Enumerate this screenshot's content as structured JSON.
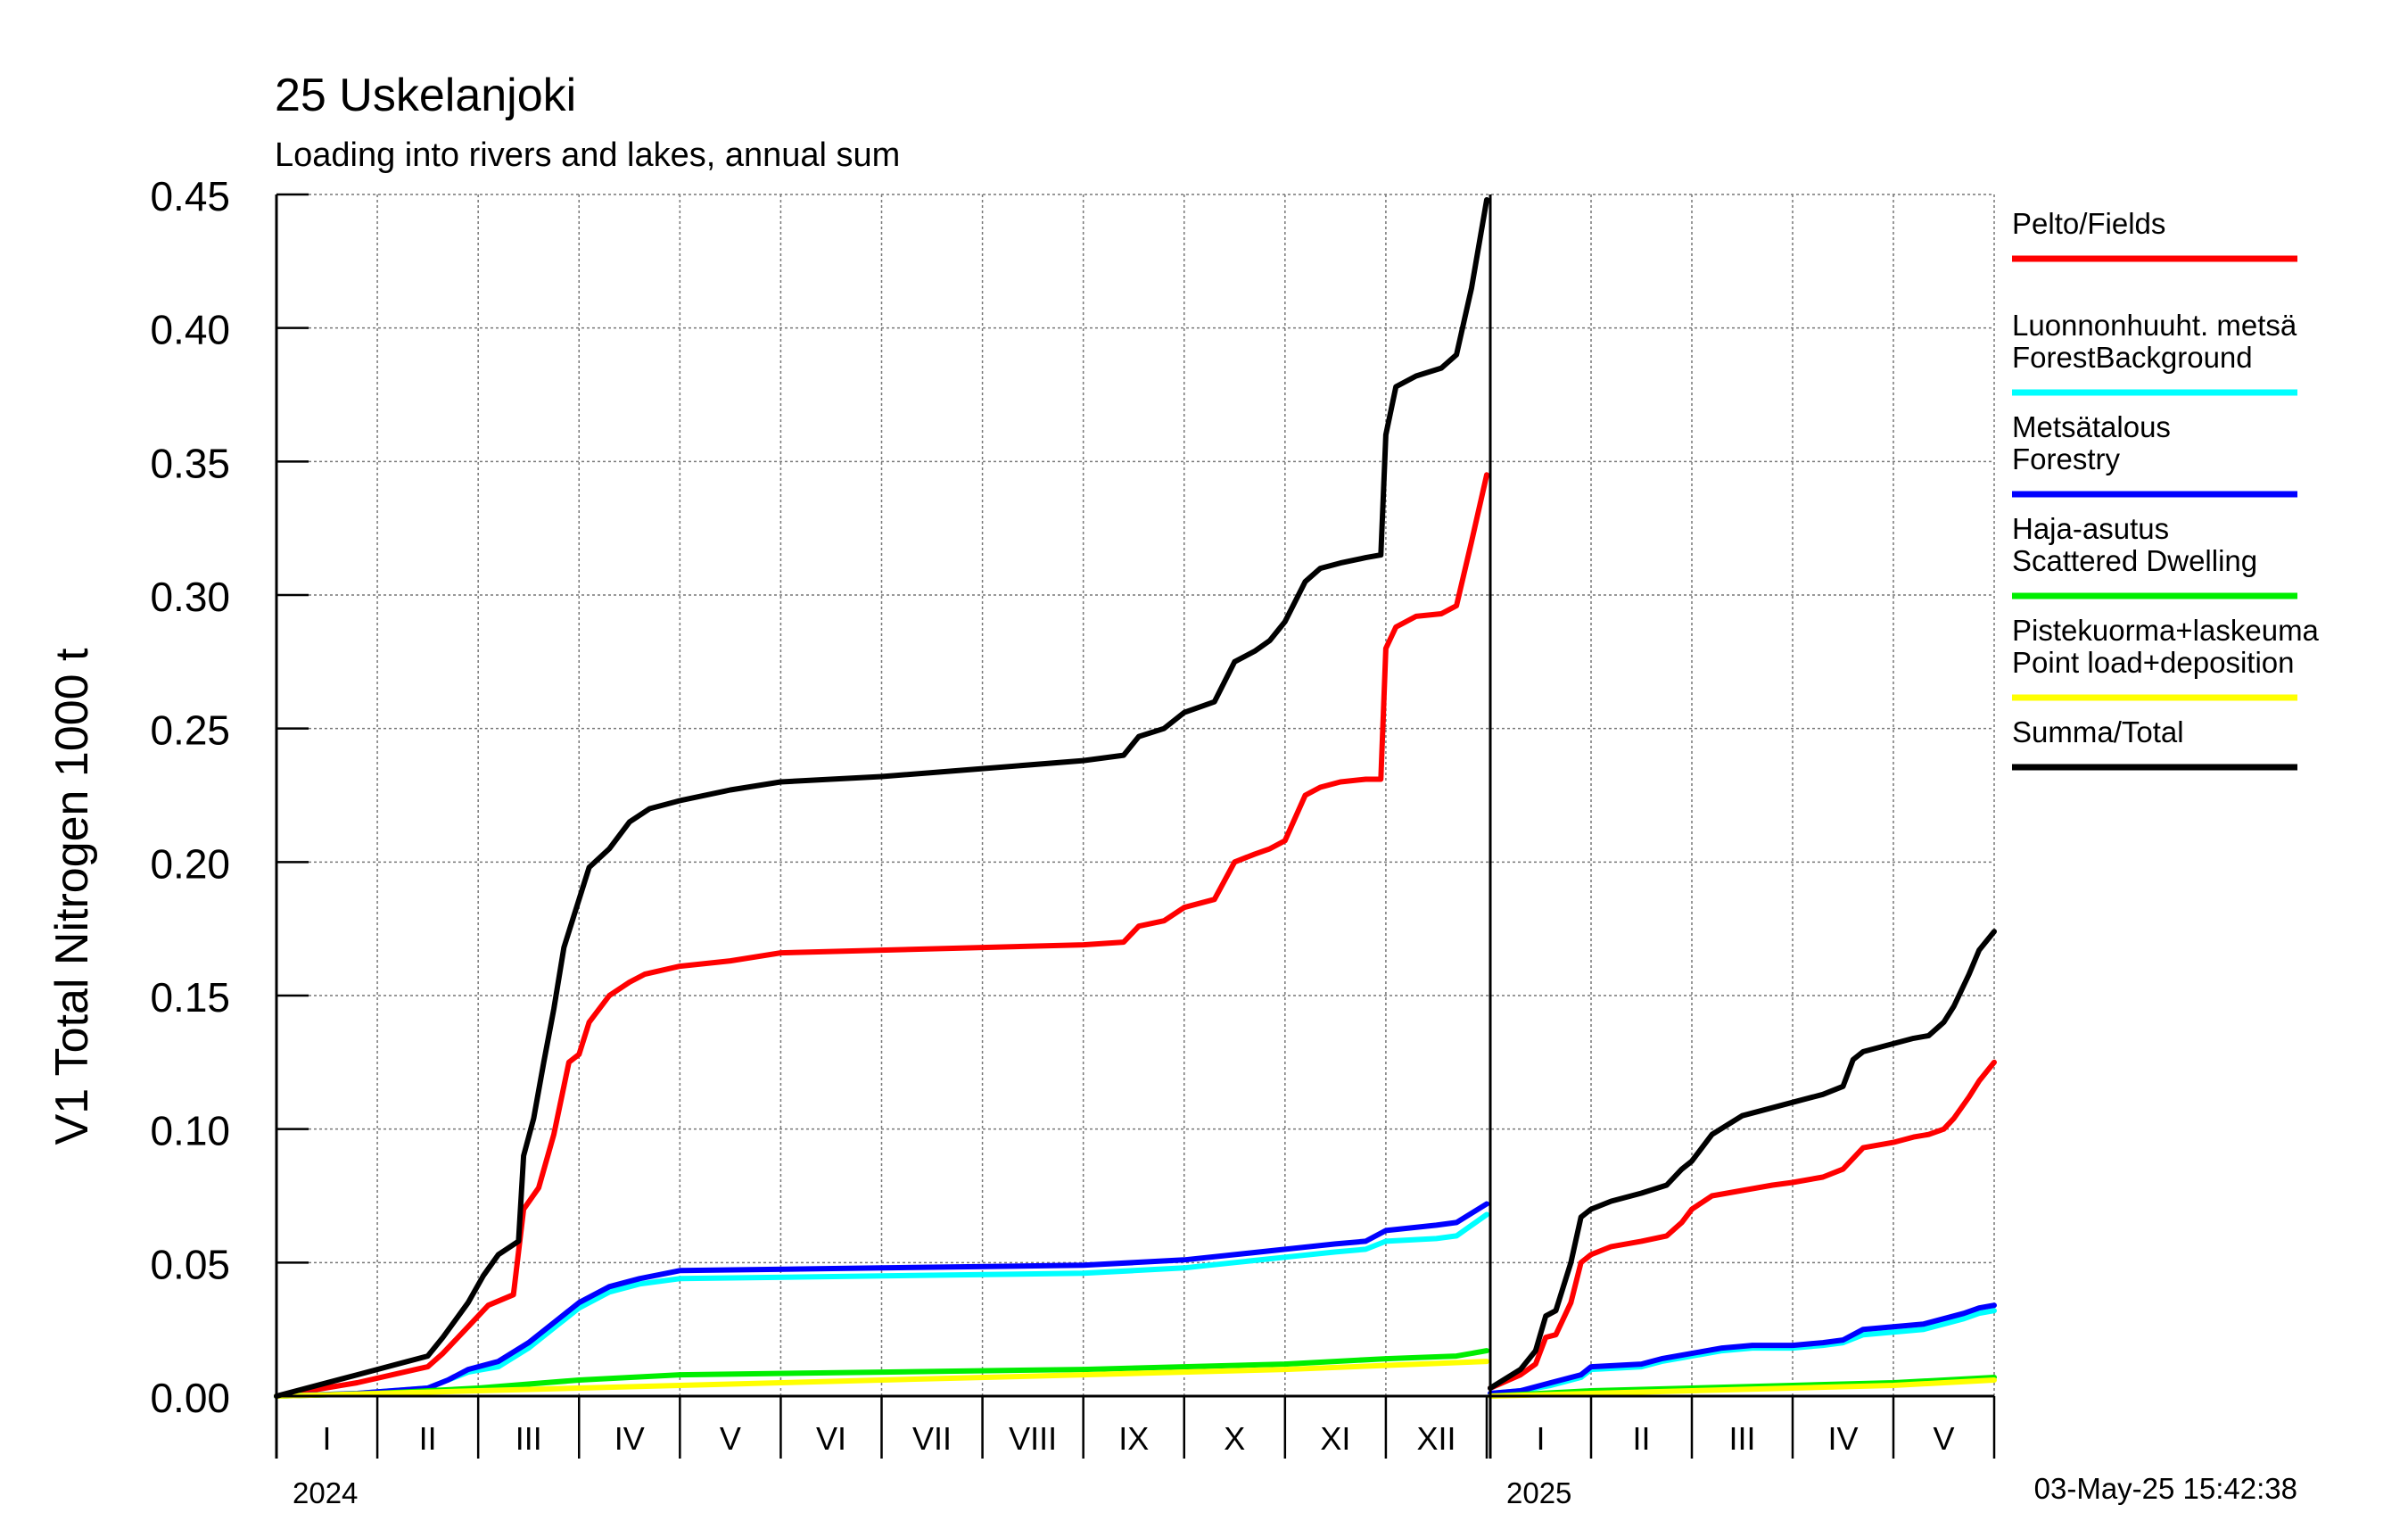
{
  "page": {
    "title": "25 Uskelanjoki",
    "subtitle": "Loading into rivers and lakes, annual sum",
    "timestamp": "03-May-25 15:42:38"
  },
  "chart_data": {
    "type": "line",
    "title": "25 Uskelanjoki",
    "subtitle": "Loading into rivers and lakes, annual sum",
    "ylabel": "V1 Total Nitrogen 1000 t",
    "xlabel": "",
    "ylim": [
      0,
      0.45
    ],
    "yticks": [
      "0.00",
      "0.05",
      "0.10",
      "0.15",
      "0.20",
      "0.25",
      "0.30",
      "0.35",
      "0.40",
      "0.45"
    ],
    "grid": true,
    "legend_position": "right",
    "x_unit": "month of year (decimal, from 1 Jan)",
    "panels": [
      {
        "year_label": "2024",
        "xlim": [
          0,
          12
        ],
        "months": [
          "I",
          "II",
          "III",
          "IV",
          "V",
          "VI",
          "VII",
          "VIII",
          "IX",
          "X",
          "XI",
          "XII"
        ],
        "series": [
          {
            "name": "Pelto/Fields",
            "color": "#ff0000",
            "x": [
              0,
              0.8,
              1.5,
              1.65,
              1.9,
              2.1,
              2.35,
              2.45,
              2.6,
              2.75,
              2.9,
              3.0,
              3.1,
              3.3,
              3.5,
              3.65,
              4.0,
              4.5,
              5,
              6,
              7,
              8,
              8.4,
              8.55,
              8.8,
              9.0,
              9.3,
              9.5,
              9.7,
              9.85,
              10.0,
              10.2,
              10.35,
              10.55,
              10.8,
              10.95,
              11.0,
              11.1,
              11.3,
              11.55,
              11.7,
              11.85,
              12
            ],
            "y": [
              0,
              0.005,
              0.011,
              0.016,
              0.026,
              0.034,
              0.038,
              0.07,
              0.078,
              0.098,
              0.125,
              0.128,
              0.14,
              0.15,
              0.155,
              0.158,
              0.161,
              0.163,
              0.166,
              0.167,
              0.168,
              0.169,
              0.17,
              0.176,
              0.178,
              0.183,
              0.186,
              0.2,
              0.203,
              0.205,
              0.208,
              0.225,
              0.228,
              0.23,
              0.231,
              0.231,
              0.28,
              0.288,
              0.292,
              0.293,
              0.296,
              0.32,
              0.345
            ]
          },
          {
            "name": "Luonnonhuuht. metsä ForestBackground",
            "color": "#00ffff",
            "x": [
              0,
              0.8,
              1.5,
              1.7,
              1.9,
              2.2,
              2.5,
              2.8,
              3.0,
              3.3,
              3.6,
              4,
              6,
              8,
              8.5,
              9,
              9.5,
              10,
              10.5,
              10.8,
              11,
              11.5,
              11.7,
              12
            ],
            "y": [
              0,
              0.001,
              0.003,
              0.006,
              0.009,
              0.011,
              0.018,
              0.027,
              0.033,
              0.039,
              0.042,
              0.044,
              0.045,
              0.046,
              0.047,
              0.048,
              0.05,
              0.052,
              0.054,
              0.055,
              0.058,
              0.059,
              0.06,
              0.068
            ]
          },
          {
            "name": "Metsätalous Forestry",
            "color": "#0000ff",
            "x": [
              0,
              0.8,
              1.5,
              1.7,
              1.9,
              2.2,
              2.5,
              2.8,
              3.0,
              3.3,
              3.6,
              4,
              6,
              8,
              8.5,
              9,
              9.5,
              10,
              10.5,
              10.8,
              11,
              11.5,
              11.7,
              12
            ],
            "y": [
              0,
              0.001,
              0.003,
              0.006,
              0.01,
              0.013,
              0.02,
              0.029,
              0.035,
              0.041,
              0.044,
              0.047,
              0.048,
              0.049,
              0.05,
              0.051,
              0.053,
              0.055,
              0.057,
              0.058,
              0.062,
              0.064,
              0.065,
              0.072
            ]
          },
          {
            "name": "Haja-asutus Scattered Dwelling",
            "color": "#00ee00",
            "x": [
              0,
              1,
              2,
              3,
              4,
              6,
              8,
              10,
              11,
              11.7,
              12
            ],
            "y": [
              0,
              0.001,
              0.003,
              0.006,
              0.008,
              0.009,
              0.01,
              0.012,
              0.014,
              0.015,
              0.017
            ]
          },
          {
            "name": "Pistekuorma+laskeuma Point load+deposition",
            "color": "#ffff00",
            "x": [
              0,
              2,
              4,
              6,
              8,
              10,
              12
            ],
            "y": [
              0,
              0.002,
              0.004,
              0.006,
              0.008,
              0.01,
              0.013
            ]
          },
          {
            "name": "Summa/Total",
            "color": "#000000",
            "x": [
              0,
              0.8,
              1.5,
              1.65,
              1.9,
              2.05,
              2.2,
              2.4,
              2.45,
              2.55,
              2.65,
              2.75,
              2.85,
              2.95,
              3.1,
              3.3,
              3.5,
              3.7,
              4,
              4.5,
              5,
              6,
              7,
              8,
              8.4,
              8.55,
              8.8,
              9.0,
              9.3,
              9.5,
              9.7,
              9.85,
              10.0,
              10.2,
              10.35,
              10.55,
              10.8,
              10.95,
              11.0,
              11.1,
              11.3,
              11.55,
              11.7,
              11.85,
              12
            ],
            "y": [
              0,
              0.008,
              0.015,
              0.022,
              0.035,
              0.045,
              0.053,
              0.058,
              0.09,
              0.104,
              0.125,
              0.145,
              0.168,
              0.18,
              0.198,
              0.205,
              0.215,
              0.22,
              0.223,
              0.227,
              0.23,
              0.232,
              0.235,
              0.238,
              0.24,
              0.247,
              0.25,
              0.256,
              0.26,
              0.275,
              0.279,
              0.283,
              0.29,
              0.305,
              0.31,
              0.312,
              0.314,
              0.315,
              0.36,
              0.378,
              0.382,
              0.385,
              0.39,
              0.415,
              0.448
            ]
          }
        ]
      },
      {
        "year_label": "2025",
        "xlim": [
          0,
          5
        ],
        "months": [
          "I",
          "II",
          "III",
          "IV",
          "V"
        ],
        "series": [
          {
            "name": "Pelto/Fields",
            "color": "#ff0000",
            "x": [
              0,
              0.3,
              0.45,
              0.55,
              0.65,
              0.8,
              0.9,
              1.0,
              1.2,
              1.5,
              1.75,
              1.9,
              2.0,
              2.2,
              2.5,
              2.8,
              3.0,
              3.3,
              3.5,
              3.7,
              4.0,
              4.2,
              4.35,
              4.5,
              4.6,
              4.75,
              4.85,
              5.0
            ],
            "y": [
              0.003,
              0.008,
              0.012,
              0.022,
              0.023,
              0.035,
              0.05,
              0.053,
              0.056,
              0.058,
              0.06,
              0.065,
              0.07,
              0.075,
              0.077,
              0.079,
              0.08,
              0.082,
              0.085,
              0.093,
              0.095,
              0.097,
              0.098,
              0.1,
              0.104,
              0.112,
              0.118,
              0.125
            ]
          },
          {
            "name": "Luonnonhuuht. metsä ForestBackground",
            "color": "#00ffff",
            "x": [
              0,
              0.3,
              0.6,
              0.9,
              1.0,
              1.5,
              1.7,
              2.0,
              2.3,
              2.6,
              3.0,
              3.3,
              3.5,
              3.7,
              4.0,
              4.3,
              4.5,
              4.7,
              4.85,
              5.0
            ],
            "y": [
              0.001,
              0.002,
              0.004,
              0.007,
              0.01,
              0.011,
              0.013,
              0.015,
              0.017,
              0.018,
              0.018,
              0.019,
              0.02,
              0.023,
              0.024,
              0.025,
              0.027,
              0.029,
              0.031,
              0.032
            ]
          },
          {
            "name": "Metsätalous Forestry",
            "color": "#0000ff",
            "x": [
              0,
              0.3,
              0.6,
              0.9,
              1.0,
              1.5,
              1.7,
              2.0,
              2.3,
              2.6,
              3.0,
              3.3,
              3.5,
              3.7,
              4.0,
              4.3,
              4.5,
              4.7,
              4.85,
              5.0
            ],
            "y": [
              0.001,
              0.002,
              0.005,
              0.008,
              0.011,
              0.012,
              0.014,
              0.016,
              0.018,
              0.019,
              0.019,
              0.02,
              0.021,
              0.025,
              0.026,
              0.027,
              0.029,
              0.031,
              0.033,
              0.034
            ]
          },
          {
            "name": "Haja-asutus Scattered Dwelling",
            "color": "#00ee00",
            "x": [
              0,
              1,
              2,
              3,
              4,
              5
            ],
            "y": [
              0,
              0.002,
              0.003,
              0.004,
              0.005,
              0.007
            ]
          },
          {
            "name": "Pistekuorma+laskeuma Point load+deposition",
            "color": "#ffff00",
            "x": [
              0,
              1,
              2,
              3,
              4,
              5
            ],
            "y": [
              0,
              0.001,
              0.002,
              0.003,
              0.004,
              0.006
            ]
          },
          {
            "name": "Summa/Total",
            "color": "#000000",
            "x": [
              0,
              0.3,
              0.45,
              0.55,
              0.65,
              0.8,
              0.9,
              1.0,
              1.2,
              1.5,
              1.75,
              1.9,
              2.0,
              2.2,
              2.5,
              2.8,
              3.0,
              3.3,
              3.5,
              3.6,
              3.7,
              4.0,
              4.2,
              4.35,
              4.5,
              4.6,
              4.75,
              4.85,
              5.0
            ],
            "y": [
              0.003,
              0.01,
              0.017,
              0.03,
              0.032,
              0.05,
              0.067,
              0.07,
              0.073,
              0.076,
              0.079,
              0.085,
              0.088,
              0.098,
              0.105,
              0.108,
              0.11,
              0.113,
              0.116,
              0.126,
              0.129,
              0.132,
              0.134,
              0.135,
              0.14,
              0.146,
              0.158,
              0.167,
              0.174
            ]
          }
        ]
      }
    ],
    "legend": [
      {
        "line1": "Pelto/Fields",
        "line2": "",
        "color": "#ff0000"
      },
      {
        "line1": "Luonnonhuuht. metsä",
        "line2": "ForestBackground",
        "color": "#00ffff"
      },
      {
        "line1": "Metsätalous",
        "line2": "Forestry",
        "color": "#0000ff"
      },
      {
        "line1": "Haja-asutus",
        "line2": "Scattered Dwelling",
        "color": "#00ee00"
      },
      {
        "line1": "Pistekuorma+laskeuma",
        "line2": "Point load+deposition",
        "color": "#ffff00"
      },
      {
        "line1": "Summa/Total",
        "line2": "",
        "color": "#000000"
      }
    ]
  }
}
